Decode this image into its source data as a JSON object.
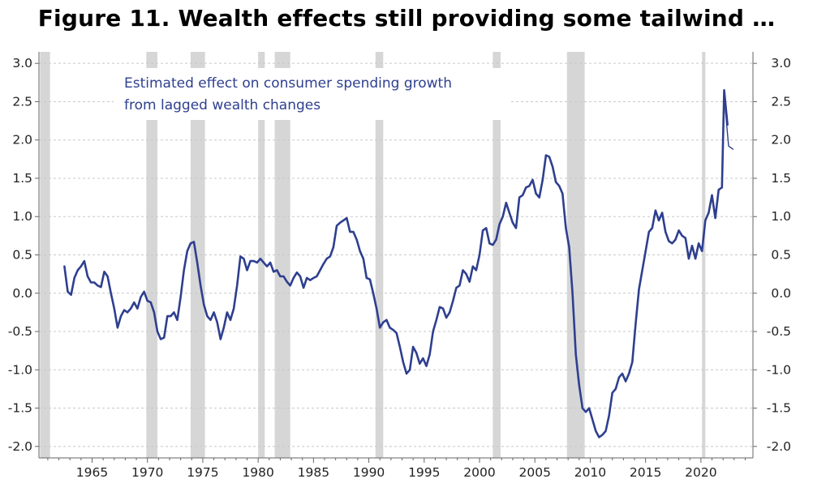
{
  "title": "Figure 11. Wealth effects still providing some tailwind  …",
  "chart_data": {
    "type": "line",
    "annotation_lines": [
      "Estimated effect on consumer spending growth",
      "from lagged wealth changes"
    ],
    "xlim": [
      1960.2,
      2024.7
    ],
    "ylim": [
      -2.15,
      3.15
    ],
    "y_ticks": [
      3.0,
      2.5,
      2.0,
      1.5,
      1.0,
      0.5,
      0.0,
      -0.5,
      -1.0,
      -1.5,
      -2.0
    ],
    "y_tick_labels_left": [
      "3.0",
      "2.5",
      "2.0",
      "1.5",
      "1.0",
      "0.5",
      "0.0",
      "-0.5",
      "-1.0",
      "-1.5",
      "-2.0"
    ],
    "y_tick_labels_right": [
      "3.0",
      "2.5",
      "2.0",
      "1.5",
      "1.0",
      "0.5",
      "0.0",
      "-0.5",
      "-1.0",
      "-1.5",
      "-2.0"
    ],
    "x_tick_labels": [
      "1965",
      "1970",
      "1975",
      "1980",
      "1985",
      "1990",
      "1995",
      "2000",
      "2005",
      "2010",
      "2015",
      "2020"
    ],
    "x_tick_values": [
      1965,
      1970,
      1975,
      1980,
      1985,
      1990,
      1995,
      2000,
      2005,
      2010,
      2015,
      2020
    ],
    "grid": "horizontal dashed",
    "recession_color": "#d6d6d6",
    "line_color": "#2e3f8f",
    "recessions": [
      [
        1960.3,
        1961.2
      ],
      [
        1969.9,
        1970.9
      ],
      [
        1973.9,
        1975.2
      ],
      [
        1980.0,
        1980.6
      ],
      [
        1981.5,
        1982.9
      ],
      [
        1990.6,
        1991.3
      ],
      [
        2001.2,
        2001.9
      ],
      [
        2007.9,
        2009.5
      ],
      [
        2020.1,
        2020.4
      ]
    ],
    "series": [
      {
        "values": [
          [
            1962.5,
            0.35
          ],
          [
            1962.8,
            0.02
          ],
          [
            1963.1,
            -0.02
          ],
          [
            1963.4,
            0.2
          ],
          [
            1963.7,
            0.3
          ],
          [
            1964.0,
            0.35
          ],
          [
            1964.3,
            0.42
          ],
          [
            1964.6,
            0.22
          ],
          [
            1964.9,
            0.14
          ],
          [
            1965.2,
            0.14
          ],
          [
            1965.5,
            0.1
          ],
          [
            1965.8,
            0.08
          ],
          [
            1966.1,
            0.28
          ],
          [
            1966.4,
            0.22
          ],
          [
            1966.7,
            0.0
          ],
          [
            1967.0,
            -0.2
          ],
          [
            1967.3,
            -0.45
          ],
          [
            1967.6,
            -0.3
          ],
          [
            1967.9,
            -0.22
          ],
          [
            1968.2,
            -0.25
          ],
          [
            1968.5,
            -0.2
          ],
          [
            1968.8,
            -0.12
          ],
          [
            1969.1,
            -0.2
          ],
          [
            1969.4,
            -0.05
          ],
          [
            1969.7,
            0.02
          ],
          [
            1970.0,
            -0.1
          ],
          [
            1970.3,
            -0.12
          ],
          [
            1970.6,
            -0.25
          ],
          [
            1970.9,
            -0.5
          ],
          [
            1971.2,
            -0.6
          ],
          [
            1971.5,
            -0.58
          ],
          [
            1971.8,
            -0.3
          ],
          [
            1972.1,
            -0.3
          ],
          [
            1972.4,
            -0.25
          ],
          [
            1972.7,
            -0.35
          ],
          [
            1973.0,
            -0.05
          ],
          [
            1973.3,
            0.3
          ],
          [
            1973.6,
            0.55
          ],
          [
            1973.9,
            0.65
          ],
          [
            1974.2,
            0.67
          ],
          [
            1974.5,
            0.4
          ],
          [
            1974.8,
            0.1
          ],
          [
            1975.1,
            -0.15
          ],
          [
            1975.4,
            -0.3
          ],
          [
            1975.7,
            -0.35
          ],
          [
            1976.0,
            -0.25
          ],
          [
            1976.3,
            -0.38
          ],
          [
            1976.6,
            -0.6
          ],
          [
            1976.9,
            -0.45
          ],
          [
            1977.2,
            -0.25
          ],
          [
            1977.5,
            -0.35
          ],
          [
            1977.8,
            -0.2
          ],
          [
            1978.1,
            0.1
          ],
          [
            1978.4,
            0.48
          ],
          [
            1978.7,
            0.45
          ],
          [
            1979.0,
            0.3
          ],
          [
            1979.3,
            0.42
          ],
          [
            1979.6,
            0.42
          ],
          [
            1979.9,
            0.4
          ],
          [
            1980.2,
            0.45
          ],
          [
            1980.5,
            0.4
          ],
          [
            1980.8,
            0.35
          ],
          [
            1981.1,
            0.4
          ],
          [
            1981.4,
            0.28
          ],
          [
            1981.7,
            0.3
          ],
          [
            1982.0,
            0.22
          ],
          [
            1982.3,
            0.22
          ],
          [
            1982.6,
            0.15
          ],
          [
            1982.9,
            0.1
          ],
          [
            1983.2,
            0.2
          ],
          [
            1983.5,
            0.27
          ],
          [
            1983.8,
            0.22
          ],
          [
            1984.1,
            0.07
          ],
          [
            1984.4,
            0.2
          ],
          [
            1984.7,
            0.17
          ],
          [
            1985.0,
            0.2
          ],
          [
            1985.3,
            0.22
          ],
          [
            1985.6,
            0.3
          ],
          [
            1985.9,
            0.38
          ],
          [
            1986.2,
            0.45
          ],
          [
            1986.5,
            0.48
          ],
          [
            1986.8,
            0.6
          ],
          [
            1987.1,
            0.88
          ],
          [
            1987.4,
            0.92
          ],
          [
            1987.7,
            0.95
          ],
          [
            1988.0,
            0.98
          ],
          [
            1988.3,
            0.8
          ],
          [
            1988.6,
            0.8
          ],
          [
            1988.9,
            0.7
          ],
          [
            1989.2,
            0.55
          ],
          [
            1989.5,
            0.45
          ],
          [
            1989.8,
            0.2
          ],
          [
            1990.1,
            0.18
          ],
          [
            1990.4,
            0.0
          ],
          [
            1990.7,
            -0.2
          ],
          [
            1991.0,
            -0.45
          ],
          [
            1991.3,
            -0.38
          ],
          [
            1991.6,
            -0.35
          ],
          [
            1991.9,
            -0.45
          ],
          [
            1992.2,
            -0.48
          ],
          [
            1992.5,
            -0.52
          ],
          [
            1992.8,
            -0.7
          ],
          [
            1993.1,
            -0.9
          ],
          [
            1993.4,
            -1.05
          ],
          [
            1993.7,
            -1.0
          ],
          [
            1994.0,
            -0.7
          ],
          [
            1994.3,
            -0.78
          ],
          [
            1994.6,
            -0.92
          ],
          [
            1994.9,
            -0.85
          ],
          [
            1995.2,
            -0.95
          ],
          [
            1995.5,
            -0.8
          ],
          [
            1995.8,
            -0.5
          ],
          [
            1996.1,
            -0.35
          ],
          [
            1996.4,
            -0.18
          ],
          [
            1996.7,
            -0.2
          ],
          [
            1997.0,
            -0.32
          ],
          [
            1997.3,
            -0.25
          ],
          [
            1997.6,
            -0.1
          ],
          [
            1997.9,
            0.07
          ],
          [
            1998.2,
            0.1
          ],
          [
            1998.5,
            0.3
          ],
          [
            1998.8,
            0.25
          ],
          [
            1999.1,
            0.15
          ],
          [
            1999.4,
            0.35
          ],
          [
            1999.7,
            0.3
          ],
          [
            2000.0,
            0.5
          ],
          [
            2000.3,
            0.82
          ],
          [
            2000.6,
            0.85
          ],
          [
            2000.9,
            0.65
          ],
          [
            2001.2,
            0.63
          ],
          [
            2001.5,
            0.7
          ],
          [
            2001.8,
            0.9
          ],
          [
            2002.1,
            1.0
          ],
          [
            2002.4,
            1.18
          ],
          [
            2002.7,
            1.05
          ],
          [
            2003.0,
            0.92
          ],
          [
            2003.3,
            0.85
          ],
          [
            2003.6,
            1.25
          ],
          [
            2003.9,
            1.28
          ],
          [
            2004.2,
            1.38
          ],
          [
            2004.5,
            1.4
          ],
          [
            2004.8,
            1.48
          ],
          [
            2005.1,
            1.3
          ],
          [
            2005.4,
            1.25
          ],
          [
            2005.7,
            1.48
          ],
          [
            2006.0,
            1.8
          ],
          [
            2006.3,
            1.78
          ],
          [
            2006.6,
            1.65
          ],
          [
            2006.9,
            1.45
          ],
          [
            2007.2,
            1.4
          ],
          [
            2007.5,
            1.3
          ],
          [
            2007.8,
            0.85
          ],
          [
            2008.1,
            0.6
          ],
          [
            2008.4,
            0.0
          ],
          [
            2008.7,
            -0.8
          ],
          [
            2009.0,
            -1.2
          ],
          [
            2009.3,
            -1.5
          ],
          [
            2009.6,
            -1.55
          ],
          [
            2009.9,
            -1.5
          ],
          [
            2010.2,
            -1.65
          ],
          [
            2010.5,
            -1.8
          ],
          [
            2010.8,
            -1.88
          ],
          [
            2011.1,
            -1.85
          ],
          [
            2011.4,
            -1.8
          ],
          [
            2011.7,
            -1.6
          ],
          [
            2012.0,
            -1.3
          ],
          [
            2012.3,
            -1.25
          ],
          [
            2012.6,
            -1.1
          ],
          [
            2012.9,
            -1.05
          ],
          [
            2013.2,
            -1.15
          ],
          [
            2013.5,
            -1.05
          ],
          [
            2013.8,
            -0.9
          ],
          [
            2014.1,
            -0.4
          ],
          [
            2014.4,
            0.05
          ],
          [
            2014.7,
            0.3
          ],
          [
            2015.0,
            0.55
          ],
          [
            2015.3,
            0.8
          ],
          [
            2015.6,
            0.85
          ],
          [
            2015.9,
            1.08
          ],
          [
            2016.2,
            0.95
          ],
          [
            2016.5,
            1.05
          ],
          [
            2016.8,
            0.8
          ],
          [
            2017.1,
            0.68
          ],
          [
            2017.4,
            0.65
          ],
          [
            2017.7,
            0.7
          ],
          [
            2018.0,
            0.82
          ],
          [
            2018.3,
            0.75
          ],
          [
            2018.6,
            0.72
          ],
          [
            2018.9,
            0.45
          ],
          [
            2019.2,
            0.62
          ],
          [
            2019.5,
            0.45
          ],
          [
            2019.8,
            0.65
          ],
          [
            2020.1,
            0.55
          ],
          [
            2020.4,
            0.95
          ],
          [
            2020.7,
            1.05
          ],
          [
            2021.0,
            1.28
          ],
          [
            2021.3,
            0.98
          ],
          [
            2021.6,
            1.35
          ],
          [
            2021.9,
            1.38
          ],
          [
            2022.1,
            2.65
          ],
          [
            2022.4,
            2.2
          ]
        ]
      },
      {
        "values": [
          [
            2022.2,
            2.4
          ],
          [
            2022.5,
            1.92
          ],
          [
            2022.9,
            1.88
          ]
        ]
      }
    ]
  }
}
